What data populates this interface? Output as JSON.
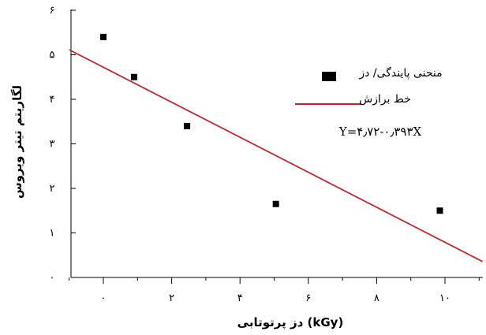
{
  "chart_data": {
    "type": "scatter",
    "x_ticks": [
      "۰",
      "۲",
      "۴",
      "۶",
      "۸",
      "۱۰"
    ],
    "x_tick_values": [
      0,
      2,
      4,
      6,
      8,
      10
    ],
    "y_ticks": [
      "۰",
      "۱",
      "۲",
      "۳",
      "۴",
      "۵",
      "۶"
    ],
    "y_tick_values": [
      0,
      1,
      2,
      3,
      4,
      5,
      6
    ],
    "xlim": [
      -1,
      11.2
    ],
    "ylim": [
      0,
      6
    ],
    "xlabel": "دز پرتوتابی (kGy)",
    "ylabel": "لگاریتم تیتر ویروس",
    "series": [
      {
        "name": "منحنی پایندگی/ دز",
        "marker": "square",
        "color": "#000000",
        "points": [
          {
            "x": 0,
            "y": 5.4
          },
          {
            "x": 0.9,
            "y": 4.5
          },
          {
            "x": 2.45,
            "y": 3.4
          },
          {
            "x": 5.05,
            "y": 1.65
          },
          {
            "x": 9.85,
            "y": 1.5
          }
        ]
      },
      {
        "name": "خط برازش",
        "type": "line",
        "color": "#c0272d",
        "intercept": 4.72,
        "slope": -0.393,
        "x_range": [
          -1,
          11.1
        ]
      }
    ],
    "equation": "Y=۴٫۷۲-۰٫۳۹۳X",
    "legend_position": "right"
  }
}
